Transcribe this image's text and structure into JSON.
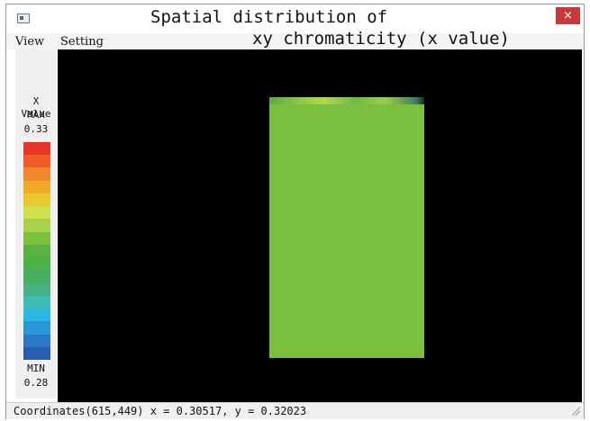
{
  "window": {
    "title_line1": "Spatial distribution of",
    "title_line2": "xy chromaticity (x value)",
    "close_glyph": "×"
  },
  "menu": {
    "items": [
      "View",
      "Setting"
    ]
  },
  "legend": {
    "title": "X Value",
    "max_label": "MAX",
    "max_value": "0.33",
    "min_label": "MIN",
    "min_value": "0.28",
    "colors": [
      "#e8342a",
      "#f25a2a",
      "#f2882a",
      "#f2a82a",
      "#e8c82e",
      "#cfe04a",
      "#a8d24a",
      "#7cc03c",
      "#5ab240",
      "#4cb24a",
      "#46ae5e",
      "#44b282",
      "#40bcb4",
      "#2ab8e0",
      "#2a98d8",
      "#2a78c8",
      "#2a5cb0"
    ]
  },
  "image": {
    "background": "#000000",
    "panel_color": "#7bbf3f"
  },
  "status": {
    "text": "Coordinates(615,449) x = 0.30517,  y = 0.32023"
  }
}
